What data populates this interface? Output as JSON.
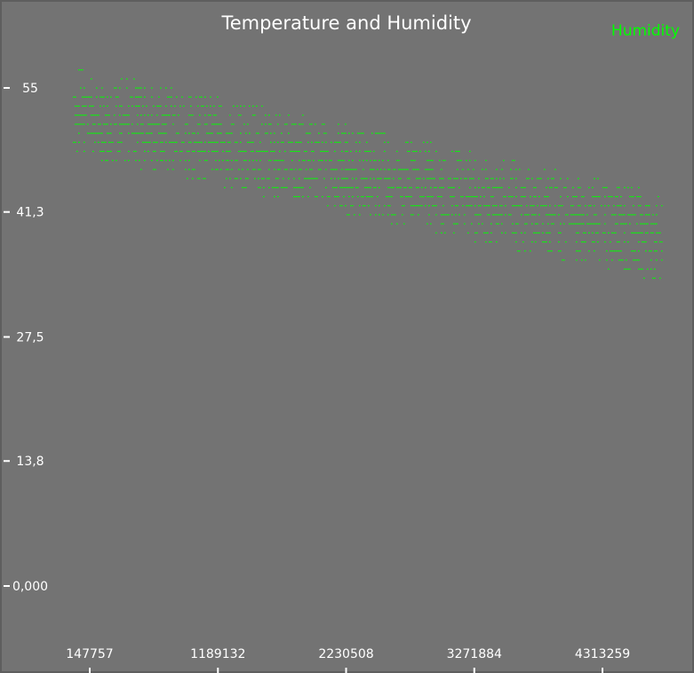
{
  "chart_data": {
    "type": "scatter",
    "title": "Temperature and Humidity",
    "xlabel": "",
    "ylabel": "",
    "legend_position": "top-right",
    "grid": false,
    "y_ticks": [
      "55",
      "41,3",
      "27,5",
      "13,8",
      "0,000"
    ],
    "y_tick_values": [
      55,
      41.3,
      27.5,
      13.8,
      0
    ],
    "x_ticks": [
      "147757",
      "1189132",
      "2230508",
      "3271884",
      "4313259"
    ],
    "x_tick_values": [
      147757,
      1189132,
      2230508,
      3271884,
      4313259
    ],
    "xlim": [
      -80000,
      4950000
    ],
    "ylim": [
      -10,
      65
    ],
    "series": [
      {
        "name": "Humidity",
        "color": "#00ff00",
        "x_range": [
          0,
          4800000
        ],
        "trend_start": 52.5,
        "trend_end": 38.5,
        "band_halfwidth": 5,
        "y_resolution": 1
      }
    ]
  }
}
